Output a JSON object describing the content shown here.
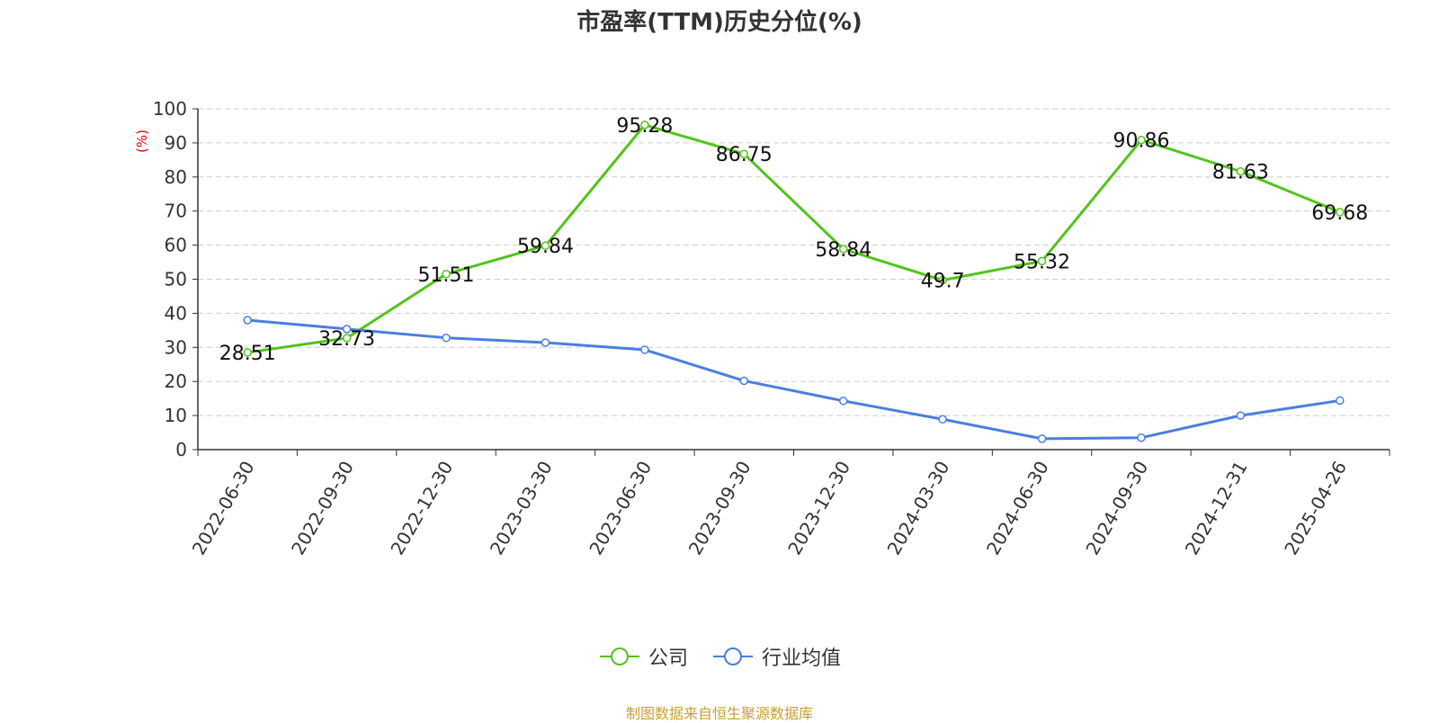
{
  "chart_data": {
    "type": "line",
    "title": "市盈率(TTM)历史分位(%)",
    "ylabel": "(%)",
    "xlabel": "",
    "ylim": [
      0,
      100
    ],
    "yticks": [
      0,
      10,
      20,
      30,
      40,
      50,
      60,
      70,
      80,
      90,
      100
    ],
    "grid": true,
    "legend_position": "bottom",
    "categories": [
      "2022-06-30",
      "2022-09-30",
      "2022-12-30",
      "2023-03-30",
      "2023-06-30",
      "2023-09-30",
      "2023-12-30",
      "2024-03-30",
      "2024-06-30",
      "2024-09-30",
      "2024-12-31",
      "2025-04-26"
    ],
    "series": [
      {
        "name": "公司",
        "color": "#52c41a",
        "values": [
          28.51,
          32.73,
          51.51,
          59.84,
          95.28,
          86.75,
          58.84,
          49.7,
          55.32,
          90.86,
          81.63,
          69.68
        ],
        "data_labels": [
          "28.51",
          "32.73",
          "51.51",
          "59.84",
          "95.28",
          "86.75",
          "58.84",
          "49.7",
          "55.32",
          "90.86",
          "81.63",
          "69.68"
        ]
      },
      {
        "name": "行业均值",
        "color": "#4a7ee0",
        "values": [
          38.0,
          35.4,
          32.8,
          31.4,
          29.3,
          20.2,
          14.3,
          8.9,
          3.2,
          3.5,
          10.0,
          14.4
        ]
      }
    ]
  },
  "source_text": "制图数据来自恒生聚源数据库"
}
